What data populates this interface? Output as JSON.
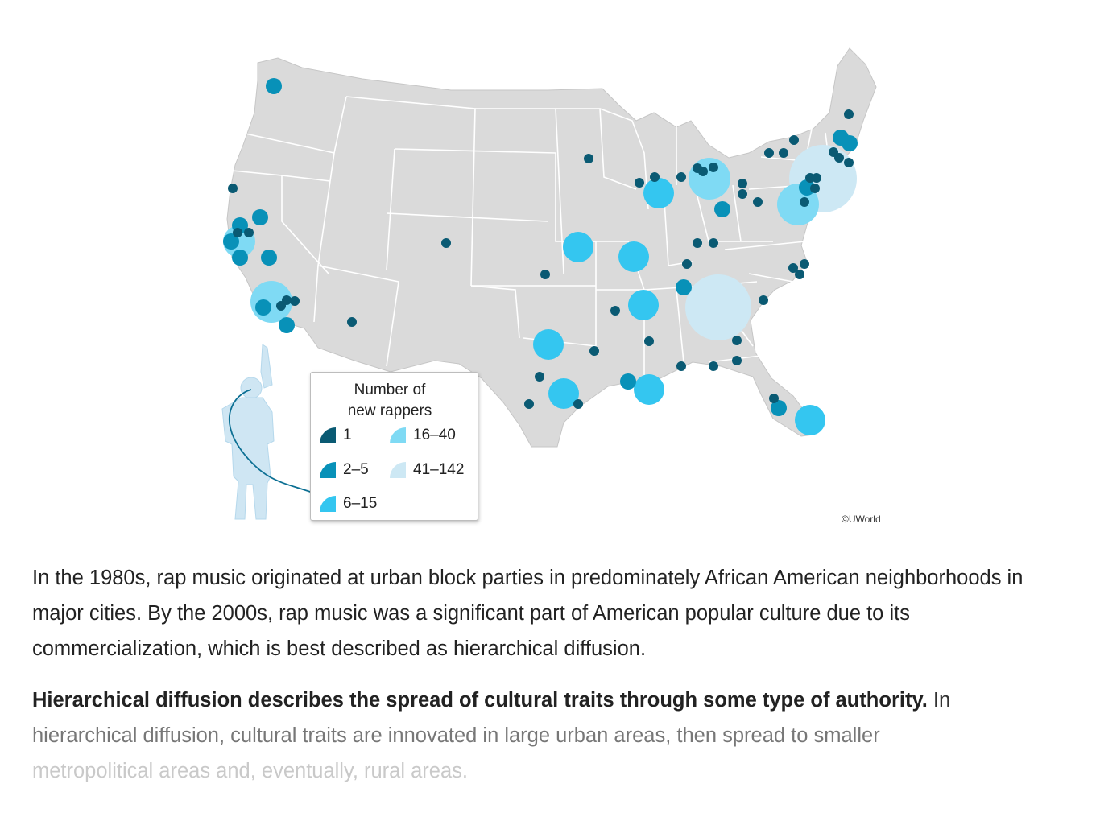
{
  "legend": {
    "title_line1": "Number of",
    "title_line2": "new rappers",
    "items": [
      {
        "label": "1",
        "color": "#0a5a73"
      },
      {
        "label": "2–5",
        "color": "#0891b8"
      },
      {
        "label": "6–15",
        "color": "#34c6f0"
      },
      {
        "label": "16–40",
        "color": "#7fdaf4"
      },
      {
        "label": "41–142",
        "color": "#cde8f4"
      }
    ]
  },
  "copyright": "©UWorld",
  "paragraph1": "In the 1980s, rap music originated at urban block parties in predominately African American neighborhoods in major cities.  By the 2000s, rap music was a significant part of American popular culture due to its commercialization, which is best described as hierarchical diffusion.",
  "paragraph2": {
    "bold": "Hierarchical diffusion describes the spread of cultural traits through some type of authority.",
    "rest_a": "  In",
    "rest_b": "hierarchical diffusion, cultural traits are innovated in large urban areas, then spread to smaller",
    "rest_c": "metropolitical areas and, eventually, rural areas."
  },
  "colors": {
    "map_fill": "#dadada",
    "state_border": "#ffffff",
    "figure_silhouette": "#cfe6f3"
  },
  "icons": {
    "figure": "person-pointing-icon"
  }
}
